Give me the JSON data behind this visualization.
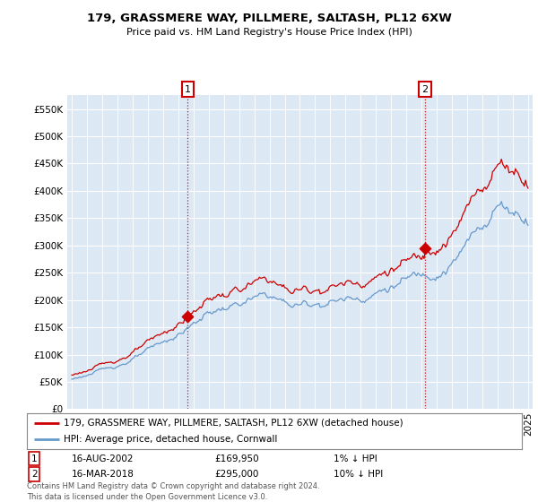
{
  "title": "179, GRASSMERE WAY, PILLMERE, SALTASH, PL12 6XW",
  "subtitle": "Price paid vs. HM Land Registry's House Price Index (HPI)",
  "sale1_label": "16-AUG-2002",
  "sale1_price": 169950,
  "sale1_year": 2002.625,
  "sale1_hpi_diff": "1% ↓ HPI",
  "sale2_label": "16-MAR-2018",
  "sale2_price": 295000,
  "sale2_year": 2018.208,
  "sale2_hpi_diff": "10% ↓ HPI",
  "property_label": "179, GRASSMERE WAY, PILLMERE, SALTASH, PL12 6XW (detached house)",
  "hpi_label": "HPI: Average price, detached house, Cornwall",
  "price_color": "#cc0000",
  "hpi_color": "#6699cc",
  "dashed_line_color": "#cc0000",
  "footer": "Contains HM Land Registry data © Crown copyright and database right 2024.\nThis data is licensed under the Open Government Licence v3.0.",
  "ylim": [
    0,
    575000
  ],
  "yticks": [
    0,
    50000,
    100000,
    150000,
    200000,
    250000,
    300000,
    350000,
    400000,
    450000,
    500000,
    550000
  ],
  "background_color": "#ffffff",
  "plot_bg_color": "#dde8f5",
  "xstart": 1995,
  "xend": 2025
}
